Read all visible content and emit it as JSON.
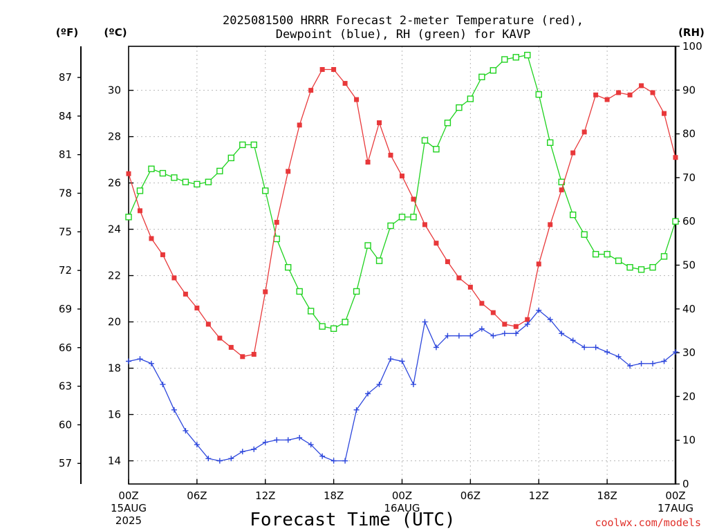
{
  "chart_data": {
    "type": "line",
    "title_line1": "2025081500 HRRR Forecast 2-meter Temperature (red),",
    "title_line2": "Dewpoint (blue), RH (green) for KAVP",
    "xlabel": "Forecast Time (UTC)",
    "credit": "coolwx.com/models",
    "units": {
      "fahrenheit": "(ºF)",
      "celsius": "(ºC)",
      "rh": "(RH)"
    },
    "x_ticks": [
      {
        "hour": 0,
        "label": "00Z",
        "sub1": "15AUG",
        "sub2": "2025"
      },
      {
        "hour": 6,
        "label": "06Z",
        "sub1": "",
        "sub2": ""
      },
      {
        "hour": 12,
        "label": "12Z",
        "sub1": "",
        "sub2": ""
      },
      {
        "hour": 18,
        "label": "18Z",
        "sub1": "",
        "sub2": ""
      },
      {
        "hour": 24,
        "label": "00Z",
        "sub1": "16AUG",
        "sub2": ""
      },
      {
        "hour": 30,
        "label": "06Z",
        "sub1": "",
        "sub2": ""
      },
      {
        "hour": 36,
        "label": "12Z",
        "sub1": "",
        "sub2": ""
      },
      {
        "hour": 42,
        "label": "18Z",
        "sub1": "",
        "sub2": ""
      },
      {
        "hour": 48,
        "label": "00Z",
        "sub1": "17AUG",
        "sub2": ""
      }
    ],
    "xlim": [
      0,
      48
    ],
    "celsius_ticks": [
      14,
      16,
      18,
      20,
      22,
      24,
      26,
      28,
      30
    ],
    "celsius_lim": [
      13.0,
      31.9
    ],
    "fahrenheit_ticks": [
      57,
      60,
      63,
      66,
      69,
      72,
      75,
      78,
      81,
      84,
      87
    ],
    "rh_ticks": [
      0,
      10,
      20,
      30,
      40,
      50,
      60,
      70,
      80,
      90,
      100
    ],
    "rh_lim": [
      0,
      100
    ],
    "grid": true,
    "series": [
      {
        "name": "Temperature",
        "axis": "celsius",
        "color": "#e8383a",
        "marker": "filled-square",
        "values": [
          26.4,
          24.8,
          23.6,
          22.9,
          21.9,
          21.2,
          20.6,
          19.9,
          19.3,
          18.9,
          18.5,
          18.6,
          21.3,
          24.3,
          26.5,
          28.5,
          30.0,
          30.9,
          30.9,
          30.3,
          29.6,
          26.9,
          28.6,
          27.2,
          26.3,
          25.3,
          24.2,
          23.4,
          22.6,
          21.9,
          21.5,
          20.8,
          20.4,
          19.9,
          19.8,
          20.1,
          22.5,
          24.2,
          25.7,
          27.3,
          28.2,
          29.8,
          29.6,
          29.9,
          29.8,
          30.2,
          29.9,
          29.0,
          27.1
        ]
      },
      {
        "name": "Dewpoint",
        "axis": "celsius",
        "color": "#2c46dc",
        "marker": "plus",
        "values": [
          18.3,
          18.4,
          18.2,
          17.3,
          16.2,
          15.3,
          14.7,
          14.1,
          14.0,
          14.1,
          14.4,
          14.5,
          14.8,
          14.9,
          14.9,
          15.0,
          14.7,
          14.2,
          14.0,
          14.0,
          16.2,
          16.9,
          17.3,
          18.4,
          18.3,
          17.3,
          20.0,
          18.9,
          19.4,
          19.4,
          19.4,
          19.7,
          19.4,
          19.5,
          19.5,
          19.9,
          20.5,
          20.1,
          19.5,
          19.2,
          18.9,
          18.9,
          18.7,
          18.5,
          18.1,
          18.2,
          18.2,
          18.3,
          18.7
        ]
      },
      {
        "name": "RH",
        "axis": "rh",
        "color": "#1ed21e",
        "marker": "open-square",
        "values": [
          61,
          67,
          72,
          71,
          70,
          69,
          68.5,
          69,
          71.5,
          74.5,
          77.5,
          77.5,
          67,
          56,
          49.5,
          44,
          39.5,
          36,
          35.5,
          37,
          44,
          54.5,
          51,
          59,
          61,
          61,
          78.5,
          76.5,
          82.5,
          86,
          88,
          93,
          94.5,
          97,
          97.5,
          98,
          89,
          78,
          69,
          61.5,
          57,
          52.5,
          52.5,
          51,
          49.5,
          49,
          49.5,
          52,
          60
        ]
      }
    ]
  }
}
